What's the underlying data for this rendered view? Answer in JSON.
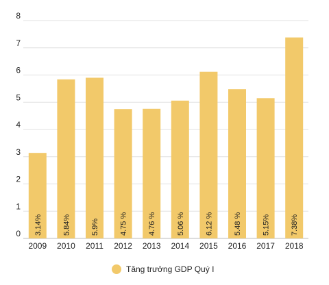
{
  "chart_data": {
    "type": "bar",
    "categories": [
      "2009",
      "2010",
      "2011",
      "2012",
      "2013",
      "2014",
      "2015",
      "2016",
      "2017",
      "2018"
    ],
    "series": [
      {
        "name": "Tăng trưởng GDP Quý I",
        "values": [
          3.14,
          5.84,
          5.9,
          4.75,
          4.76,
          5.06,
          6.12,
          5.48,
          5.15,
          7.38
        ],
        "data_labels": [
          "3.14%",
          "5.84%",
          "5.9%",
          "4.75 %",
          "4.76 %",
          "5.06 %",
          "6.12 %",
          "5.48 %",
          "5.15%",
          "7.38%"
        ],
        "color": "#F2C96A"
      }
    ],
    "yticks": [
      "0",
      "1",
      "2",
      "3",
      "4",
      "5",
      "6",
      "7",
      "8"
    ],
    "ylim": [
      0,
      8
    ],
    "grid": true,
    "legend_position": "bottom-center",
    "title": "",
    "xlabel": "",
    "ylabel": ""
  }
}
